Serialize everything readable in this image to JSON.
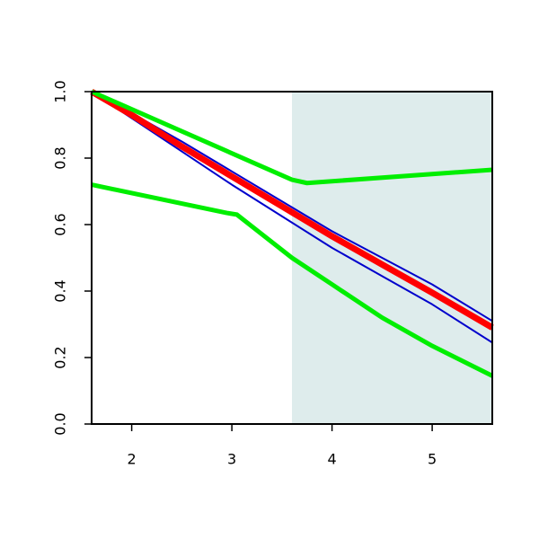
{
  "chart_data": {
    "type": "line",
    "xlim": [
      1.6,
      5.6
    ],
    "ylim": [
      0,
      1.0
    ],
    "xticks": [
      2,
      3,
      4,
      5
    ],
    "yticks": [
      {
        "value": 0,
        "label": "0.0"
      },
      0.2,
      0.4,
      0.6,
      0.8,
      {
        "value": 1,
        "label": "1.0"
      }
    ],
    "shaded_xrange": [
      3.6,
      5.6
    ],
    "shade_color": "#deecec",
    "series": [
      {
        "color": "#0000cc",
        "width": 2,
        "x": [
          1.6,
          2,
          2.5,
          3,
          3.5,
          4,
          4.5,
          5,
          5.6
        ],
        "values": [
          1.0,
          0.935,
          0.85,
          0.76,
          0.67,
          0.58,
          0.5,
          0.42,
          0.31
        ]
      },
      {
        "color": "#0000cc",
        "width": 2,
        "x": [
          1.6,
          2,
          2.5,
          3,
          3.5,
          4,
          4.5,
          5,
          5.6
        ],
        "values": [
          1.0,
          0.92,
          0.82,
          0.72,
          0.625,
          0.53,
          0.445,
          0.36,
          0.245
        ]
      },
      {
        "color": "#ff0000",
        "width": 7,
        "x": [
          1.6,
          2,
          2.5,
          3,
          3.5,
          4,
          4.5,
          5,
          5.6
        ],
        "values": [
          1.0,
          0.93,
          0.835,
          0.745,
          0.655,
          0.565,
          0.48,
          0.395,
          0.29
        ]
      },
      {
        "color": "#00ee00",
        "width": 5,
        "x": [
          1.6,
          3.6,
          3.75,
          5.6
        ],
        "values": [
          1.0,
          0.735,
          0.725,
          0.765
        ]
      },
      {
        "color": "#00ee00",
        "width": 5,
        "x": [
          1.6,
          2.95,
          3.05,
          3.6,
          4,
          4.5,
          5,
          5.6
        ],
        "values": [
          0.72,
          0.635,
          0.63,
          0.5,
          0.42,
          0.32,
          0.235,
          0.145
        ]
      }
    ]
  }
}
